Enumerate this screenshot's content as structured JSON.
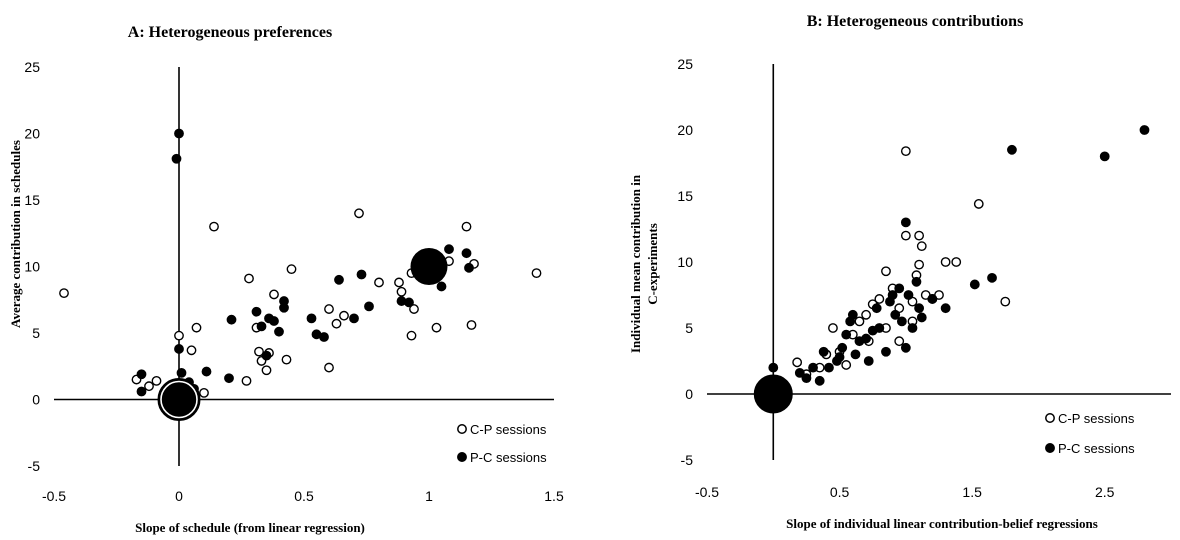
{
  "chart_data": [
    {
      "type": "scatter",
      "title": "A: Heterogeneous preferences",
      "xlabel": "Slope of schedule (from linear regression)",
      "ylabel": "Average contribution in schedules",
      "xlim": [
        -0.5,
        1.5
      ],
      "ylim": [
        -5,
        25
      ],
      "xticks": [
        -0.5,
        0,
        0.5,
        1,
        1.5
      ],
      "xtick_labels": [
        "-0.5",
        "0",
        "0.5",
        "1",
        "1.5"
      ],
      "yticks": [
        -5,
        0,
        5,
        10,
        15,
        20,
        25
      ],
      "ytick_labels": [
        "-5",
        "0",
        "5",
        "10",
        "15",
        "20",
        "25"
      ],
      "grid": false,
      "legend_position": "bottom-right",
      "large_markers": [
        {
          "series": "P-C sessions",
          "x": 0,
          "y": 0
        },
        {
          "series": "C-P sessions",
          "x": 0,
          "y": 0
        },
        {
          "series": "P-C sessions",
          "x": 1,
          "y": 10
        }
      ],
      "series": [
        {
          "name": "C-P sessions",
          "marker": "open-circle",
          "points": [
            [
              -0.46,
              8.0
            ],
            [
              -0.17,
              1.5
            ],
            [
              -0.12,
              1.0
            ],
            [
              -0.09,
              1.4
            ],
            [
              0.0,
              4.8
            ],
            [
              0.05,
              3.7
            ],
            [
              0.07,
              5.4
            ],
            [
              0.1,
              0.5
            ],
            [
              0.14,
              13.0
            ],
            [
              0.03,
              1.0
            ],
            [
              0.02,
              0.7
            ],
            [
              0.27,
              1.4
            ],
            [
              0.28,
              9.1
            ],
            [
              0.31,
              5.4
            ],
            [
              0.32,
              3.6
            ],
            [
              0.33,
              2.9
            ],
            [
              0.35,
              2.2
            ],
            [
              0.36,
              3.5
            ],
            [
              0.38,
              7.9
            ],
            [
              0.43,
              3.0
            ],
            [
              0.45,
              9.8
            ],
            [
              0.6,
              2.4
            ],
            [
              0.6,
              6.8
            ],
            [
              0.63,
              5.7
            ],
            [
              0.66,
              6.3
            ],
            [
              0.72,
              14.0
            ],
            [
              0.8,
              8.8
            ],
            [
              0.88,
              8.8
            ],
            [
              0.89,
              8.1
            ],
            [
              0.93,
              4.8
            ],
            [
              0.94,
              6.8
            ],
            [
              0.93,
              9.5
            ],
            [
              0.95,
              10.0
            ],
            [
              1.03,
              5.4
            ],
            [
              1.08,
              10.4
            ],
            [
              1.15,
              13.0
            ],
            [
              1.17,
              5.6
            ],
            [
              1.18,
              10.2
            ],
            [
              1.43,
              9.5
            ]
          ]
        },
        {
          "name": "P-C sessions",
          "marker": "filled-circle",
          "points": [
            [
              -0.15,
              0.6
            ],
            [
              -0.15,
              1.9
            ],
            [
              -0.01,
              18.1
            ],
            [
              0.0,
              20.0
            ],
            [
              0.0,
              3.8
            ],
            [
              0.01,
              2.0
            ],
            [
              0.04,
              1.3
            ],
            [
              0.06,
              0.8
            ],
            [
              0.11,
              2.1
            ],
            [
              0.2,
              1.6
            ],
            [
              0.21,
              6.0
            ],
            [
              0.31,
              6.6
            ],
            [
              0.33,
              5.5
            ],
            [
              0.35,
              3.3
            ],
            [
              0.36,
              6.1
            ],
            [
              0.38,
              5.9
            ],
            [
              0.4,
              5.1
            ],
            [
              0.42,
              6.9
            ],
            [
              0.42,
              7.4
            ],
            [
              0.53,
              6.1
            ],
            [
              0.55,
              4.9
            ],
            [
              0.58,
              4.7
            ],
            [
              0.64,
              9.0
            ],
            [
              0.7,
              6.1
            ],
            [
              0.73,
              9.4
            ],
            [
              0.76,
              7.0
            ],
            [
              0.89,
              7.4
            ],
            [
              0.92,
              7.3
            ],
            [
              0.99,
              9.6
            ],
            [
              1.0,
              10.6
            ],
            [
              1.04,
              10.0
            ],
            [
              1.05,
              8.5
            ],
            [
              1.08,
              11.3
            ],
            [
              1.15,
              11.0
            ],
            [
              1.16,
              9.9
            ]
          ]
        }
      ]
    },
    {
      "type": "scatter",
      "title": "B: Heterogeneous contributions",
      "xlabel": "Slope of individual linear contribution-belief regressions",
      "ylabel": "Individual mean contribution in C-experiments",
      "xlim": [
        -0.5,
        3.0
      ],
      "ylim": [
        -5,
        25
      ],
      "xticks": [
        -0.5,
        0.5,
        1.5,
        2.5
      ],
      "xtick_labels": [
        "-0.5",
        "0.5",
        "1.5",
        "2.5"
      ],
      "yticks": [
        -5,
        0,
        5,
        10,
        15,
        20,
        25
      ],
      "ytick_labels": [
        "-5",
        "0",
        "5",
        "10",
        "15",
        "20",
        "25"
      ],
      "grid": false,
      "legend_position": "bottom-right",
      "large_markers": [
        {
          "series": "P-C sessions",
          "x": 0,
          "y": 0
        }
      ],
      "series": [
        {
          "name": "C-P sessions",
          "marker": "open-circle",
          "points": [
            [
              0.18,
              2.4
            ],
            [
              0.25,
              1.5
            ],
            [
              0.35,
              2.0
            ],
            [
              0.4,
              3.0
            ],
            [
              0.45,
              5.0
            ],
            [
              0.5,
              3.2
            ],
            [
              0.55,
              2.2
            ],
            [
              0.6,
              4.5
            ],
            [
              0.65,
              5.5
            ],
            [
              0.7,
              6.0
            ],
            [
              0.72,
              4.0
            ],
            [
              0.75,
              6.8
            ],
            [
              0.8,
              7.2
            ],
            [
              0.85,
              9.3
            ],
            [
              0.85,
              5.0
            ],
            [
              0.9,
              8.0
            ],
            [
              0.95,
              6.5
            ],
            [
              1.0,
              12.0
            ],
            [
              1.0,
              18.4
            ],
            [
              1.05,
              7.0
            ],
            [
              1.08,
              9.0
            ],
            [
              1.1,
              9.8
            ],
            [
              1.1,
              12.0
            ],
            [
              1.12,
              11.2
            ],
            [
              1.15,
              7.5
            ],
            [
              1.2,
              7.2
            ],
            [
              1.25,
              7.5
            ],
            [
              1.3,
              10.0
            ],
            [
              1.38,
              10.0
            ],
            [
              1.55,
              14.4
            ],
            [
              1.75,
              7.0
            ],
            [
              0.95,
              4.0
            ],
            [
              1.05,
              5.5
            ]
          ]
        },
        {
          "name": "P-C sessions",
          "marker": "filled-circle",
          "points": [
            [
              0.0,
              2.0
            ],
            [
              0.2,
              1.6
            ],
            [
              0.25,
              1.2
            ],
            [
              0.3,
              2.0
            ],
            [
              0.35,
              1.0
            ],
            [
              0.38,
              3.2
            ],
            [
              0.42,
              2.0
            ],
            [
              0.48,
              2.5
            ],
            [
              0.5,
              2.8
            ],
            [
              0.52,
              3.5
            ],
            [
              0.55,
              4.5
            ],
            [
              0.58,
              5.5
            ],
            [
              0.6,
              6.0
            ],
            [
              0.62,
              3.0
            ],
            [
              0.65,
              4.0
            ],
            [
              0.7,
              4.2
            ],
            [
              0.72,
              2.5
            ],
            [
              0.75,
              4.8
            ],
            [
              0.78,
              6.5
            ],
            [
              0.8,
              5.0
            ],
            [
              0.85,
              3.2
            ],
            [
              0.88,
              7.0
            ],
            [
              0.9,
              7.5
            ],
            [
              0.92,
              6.0
            ],
            [
              0.95,
              8.0
            ],
            [
              0.97,
              5.5
            ],
            [
              1.0,
              13.0
            ],
            [
              1.0,
              3.5
            ],
            [
              1.02,
              7.5
            ],
            [
              1.05,
              5.0
            ],
            [
              1.08,
              8.5
            ],
            [
              1.1,
              6.5
            ],
            [
              1.12,
              5.8
            ],
            [
              1.2,
              7.2
            ],
            [
              1.3,
              6.5
            ],
            [
              1.52,
              8.3
            ],
            [
              1.65,
              8.8
            ],
            [
              1.8,
              18.5
            ],
            [
              2.5,
              18.0
            ],
            [
              2.8,
              20.0
            ]
          ]
        }
      ]
    }
  ]
}
